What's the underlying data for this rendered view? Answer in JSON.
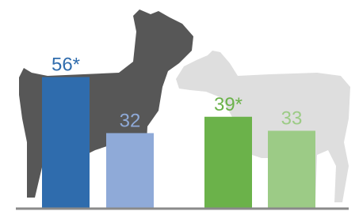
{
  "chart_data": {
    "type": "bar",
    "values": [
      56,
      32,
      39,
      33
    ],
    "value_labels": [
      "56*",
      "32",
      "39*",
      "33"
    ],
    "colors": [
      "#2f6cad",
      "#8faad8",
      "#6bb24a",
      "#9ccb86"
    ],
    "ylim": [
      0,
      89
    ]
  }
}
